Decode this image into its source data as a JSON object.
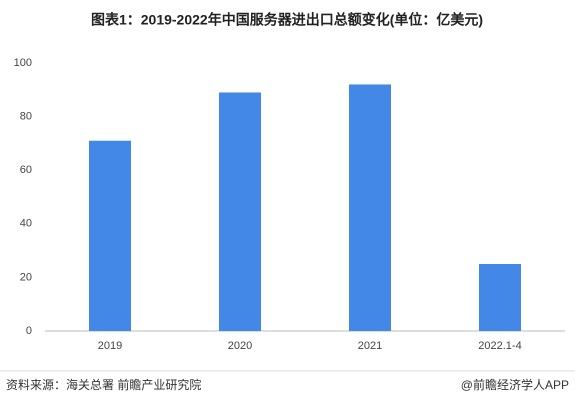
{
  "chart_data": {
    "type": "bar",
    "title": "图表1：2019-2022年中国服务器进出口总额变化(单位：亿美元)",
    "categories": [
      "2019",
      "2020",
      "2021",
      "2022.1-4"
    ],
    "values": [
      71,
      89,
      92,
      25
    ],
    "color": "#4388e6",
    "ylim": [
      0,
      100
    ],
    "yticks": [
      0,
      20,
      40,
      60,
      80,
      100
    ],
    "grid": false,
    "source": "资料来源：海关总署 前瞻产业研究院",
    "credit": "@前瞻经济学人APP"
  }
}
